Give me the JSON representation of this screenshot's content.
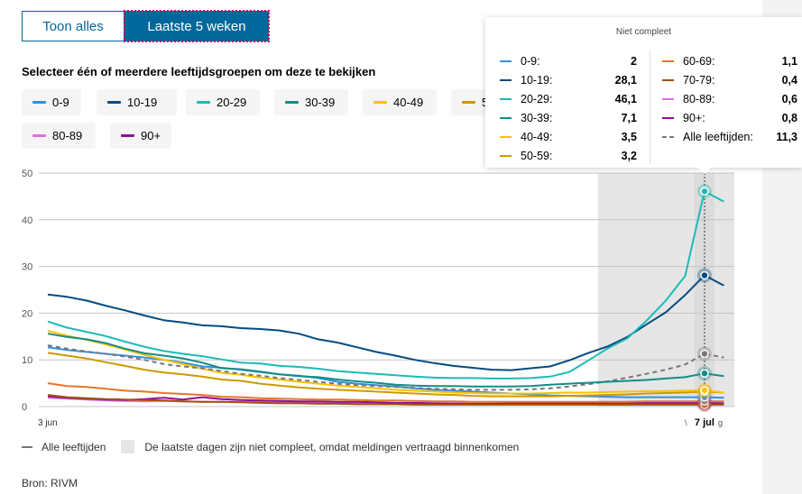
{
  "toggle": {
    "options": [
      "Toon alles",
      "Laatste 5 weken"
    ],
    "active": "Laatste 5 weken"
  },
  "select_title": "Selecteer één of meerdere leeftijdsgroepen om deze te bekijken",
  "chips": [
    {
      "label": "0-9",
      "color": "#3391e0"
    },
    {
      "label": "10-19",
      "color": "#044b7f"
    },
    {
      "label": "20-29",
      "color": "#1bbbb5"
    },
    {
      "label": "30-39",
      "color": "#138c86"
    },
    {
      "label": "40-49",
      "color": "#ffc000"
    },
    {
      "label": "5",
      "color": "#cc9a00"
    },
    {
      "label": "80-89",
      "color": "#e06de6"
    },
    {
      "label": "90+",
      "color": "#8b1296"
    }
  ],
  "tooltip": {
    "title": "Niet compleet",
    "col1": [
      {
        "label": "0-9:",
        "value": "2",
        "color": "#3391e0"
      },
      {
        "label": "10-19:",
        "value": "28,1",
        "color": "#044b7f"
      },
      {
        "label": "20-29:",
        "value": "46,1",
        "color": "#1bbbb5"
      },
      {
        "label": "30-39:",
        "value": "7,1",
        "color": "#138c86"
      },
      {
        "label": "40-49:",
        "value": "3,5",
        "color": "#ffc000"
      },
      {
        "label": "50-59:",
        "value": "3,2",
        "color": "#cc9a00"
      }
    ],
    "col2": [
      {
        "label": "60-69:",
        "value": "1,1",
        "color": "#e5742b"
      },
      {
        "label": "70-79:",
        "value": "0,4",
        "color": "#a24f0f"
      },
      {
        "label": "80-89:",
        "value": "0,6",
        "color": "#e06de6"
      },
      {
        "label": "90+:",
        "value": "0,8",
        "color": "#8b1296"
      },
      {
        "label": "Alle leeftijden:",
        "value": "11,3",
        "color": "#777777",
        "dashed": true
      }
    ]
  },
  "chart_data": {
    "type": "line",
    "title": "",
    "xlabel": "",
    "ylabel": "",
    "ylim": [
      0,
      50
    ],
    "yticks": [
      0,
      10,
      20,
      30,
      40,
      50
    ],
    "grid": true,
    "x_start_label": "3 jun",
    "x_end_label": "7 jul",
    "x_end_label_partial_left": "\\",
    "x_end_label_partial_right": "g",
    "n_days": 36,
    "highlight_index": 34,
    "incomplete_from_index": 29,
    "series": [
      {
        "name": "0-9",
        "color": "#3391e0",
        "values": [
          12.7,
          12.1,
          11.7,
          11.3,
          10.9,
          10.5,
          10.0,
          9.4,
          8.6,
          8.3,
          7.9,
          7.4,
          6.9,
          6.6,
          6.1,
          5.3,
          4.9,
          4.6,
          4.3,
          3.9,
          3.6,
          3.4,
          3.2,
          3.0,
          2.8,
          2.6,
          2.4,
          2.3,
          2.2,
          2.1,
          2.0,
          2.0,
          2.0,
          2.0,
          2.0,
          1.9
        ]
      },
      {
        "name": "10-19",
        "color": "#044b7f",
        "values": [
          24.0,
          23.5,
          22.7,
          21.6,
          20.6,
          19.5,
          18.5,
          18.0,
          17.4,
          17.2,
          16.8,
          16.6,
          16.3,
          15.6,
          14.4,
          13.7,
          12.7,
          11.7,
          10.9,
          10.0,
          9.3,
          8.7,
          8.3,
          7.9,
          7.8,
          8.2,
          8.6,
          9.9,
          11.5,
          12.9,
          14.9,
          17.6,
          20.2,
          23.9,
          28.1,
          25.9
        ]
      },
      {
        "name": "20-29",
        "color": "#1bbbb5",
        "values": [
          18.2,
          16.9,
          16.0,
          15.1,
          13.9,
          12.8,
          11.9,
          11.3,
          10.8,
          10.1,
          9.4,
          9.2,
          8.7,
          8.5,
          8.1,
          7.6,
          7.3,
          7.0,
          6.7,
          6.4,
          6.2,
          6.1,
          6.1,
          6.0,
          6.0,
          6.1,
          6.4,
          7.4,
          9.9,
          12.5,
          14.6,
          18.4,
          22.7,
          28.0,
          46.1,
          43.9
        ]
      },
      {
        "name": "30-39",
        "color": "#138c86",
        "values": [
          15.6,
          14.9,
          14.4,
          13.6,
          12.4,
          11.4,
          10.9,
          10.3,
          9.4,
          8.2,
          8.0,
          7.5,
          6.9,
          6.5,
          6.3,
          5.8,
          5.4,
          5.1,
          4.7,
          4.5,
          4.4,
          4.4,
          4.3,
          4.3,
          4.3,
          4.4,
          4.7,
          4.9,
          5.1,
          5.3,
          5.5,
          5.7,
          6.0,
          6.3,
          7.1,
          6.5
        ]
      },
      {
        "name": "40-49",
        "color": "#ffc000",
        "values": [
          16.2,
          15.2,
          14.3,
          13.3,
          12.2,
          11.1,
          10.0,
          9.1,
          8.1,
          7.2,
          6.8,
          6.2,
          5.8,
          5.3,
          4.9,
          4.5,
          4.2,
          3.9,
          3.6,
          3.4,
          3.2,
          3.0,
          2.9,
          2.8,
          2.8,
          2.8,
          2.9,
          3.0,
          3.0,
          3.1,
          3.2,
          3.3,
          3.3,
          3.4,
          3.5,
          3.0
        ]
      },
      {
        "name": "50-59",
        "color": "#cc9a00",
        "values": [
          11.5,
          10.9,
          10.3,
          9.5,
          8.7,
          7.9,
          7.3,
          6.9,
          6.4,
          5.8,
          5.5,
          4.9,
          4.5,
          4.1,
          3.8,
          3.6,
          3.4,
          3.2,
          3.0,
          2.8,
          2.6,
          2.5,
          2.3,
          2.2,
          2.2,
          2.2,
          2.2,
          2.3,
          2.4,
          2.5,
          2.6,
          2.8,
          2.9,
          3.0,
          3.2,
          3.0
        ]
      },
      {
        "name": "60-69",
        "color": "#e5742b",
        "values": [
          5.0,
          4.4,
          4.2,
          3.8,
          3.4,
          3.2,
          2.9,
          2.7,
          2.5,
          2.1,
          2.0,
          1.8,
          1.7,
          1.6,
          1.5,
          1.5,
          1.4,
          1.3,
          1.3,
          1.2,
          1.1,
          1.1,
          1.0,
          1.0,
          1.0,
          1.0,
          1.0,
          1.0,
          1.0,
          1.0,
          1.0,
          1.1,
          1.1,
          1.1,
          1.1,
          1.1
        ]
      },
      {
        "name": "70-79",
        "color": "#a24f0f",
        "values": [
          2.5,
          2.0,
          1.8,
          1.6,
          1.5,
          1.4,
          1.3,
          1.1,
          1.0,
          1.0,
          0.9,
          0.8,
          0.7,
          0.7,
          0.6,
          0.6,
          0.5,
          0.5,
          0.5,
          0.4,
          0.4,
          0.4,
          0.4,
          0.4,
          0.4,
          0.4,
          0.4,
          0.4,
          0.4,
          0.4,
          0.4,
          0.4,
          0.4,
          0.4,
          0.4,
          0.4
        ]
      },
      {
        "name": "80-89",
        "color": "#e06de6",
        "values": [
          1.9,
          1.7,
          1.5,
          1.3,
          1.2,
          1.1,
          1.2,
          1.1,
          1.0,
          1.0,
          1.0,
          1.0,
          0.9,
          0.9,
          0.9,
          0.8,
          0.8,
          0.8,
          0.7,
          0.7,
          0.7,
          0.7,
          0.6,
          0.6,
          0.6,
          0.6,
          0.6,
          0.6,
          0.6,
          0.6,
          0.6,
          0.6,
          0.6,
          0.6,
          0.6,
          0.6
        ]
      },
      {
        "name": "90+",
        "color": "#8b1296",
        "values": [
          2.2,
          1.9,
          1.7,
          1.5,
          1.4,
          1.6,
          1.9,
          1.5,
          2.0,
          1.6,
          1.4,
          1.3,
          1.2,
          1.1,
          1.1,
          1.0,
          1.0,
          0.9,
          0.8,
          0.8,
          0.7,
          0.6,
          0.6,
          0.6,
          0.7,
          0.7,
          0.7,
          0.7,
          0.7,
          0.8,
          0.8,
          0.8,
          0.8,
          0.8,
          0.8,
          0.7
        ]
      },
      {
        "name": "Alle leeftijden",
        "color": "#777777",
        "dashed": true,
        "values": [
          13.1,
          12.4,
          11.8,
          11.3,
          10.7,
          10.0,
          9.1,
          8.6,
          8.2,
          7.6,
          7.0,
          6.6,
          6.1,
          5.7,
          5.3,
          4.9,
          4.6,
          4.4,
          4.2,
          4.0,
          3.8,
          3.7,
          3.6,
          3.6,
          3.6,
          3.7,
          3.9,
          4.3,
          4.8,
          5.4,
          6.2,
          7.0,
          7.9,
          9.0,
          11.3,
          10.5
        ]
      }
    ]
  },
  "bottom_legend": {
    "all_ages": "Alle leeftijden",
    "incomplete": "De laatste dagen zijn niet compleet, omdat meldingen vertraagd binnenkomen"
  },
  "source": "Bron: RIVM"
}
